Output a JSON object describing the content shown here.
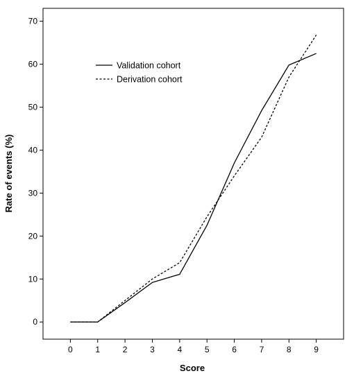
{
  "chart_data": {
    "type": "line",
    "xlabel": "Score",
    "ylabel": "Rate of events (%)",
    "x": [
      0,
      1,
      2,
      3,
      4,
      5,
      6,
      7,
      8,
      9
    ],
    "xlim": [
      -1,
      10
    ],
    "ylim": [
      -4,
      73
    ],
    "x_ticks": [
      0,
      1,
      2,
      3,
      4,
      5,
      6,
      7,
      8,
      9
    ],
    "y_ticks": [
      0,
      10,
      20,
      30,
      40,
      50,
      60,
      70
    ],
    "grid": false,
    "legend_position": "upper-left",
    "series": [
      {
        "name": "Validation cohort",
        "style": "solid",
        "color": "#000000",
        "values": [
          0,
          0,
          4.5,
          9.2,
          11.1,
          22.5,
          37.0,
          49.2,
          59.8,
          62.5
        ]
      },
      {
        "name": "Derivation cohort",
        "style": "dashed",
        "color": "#000000",
        "values": [
          0,
          0,
          5.0,
          10.0,
          13.8,
          24.5,
          34.0,
          43.0,
          57.0,
          66.8
        ]
      }
    ]
  }
}
